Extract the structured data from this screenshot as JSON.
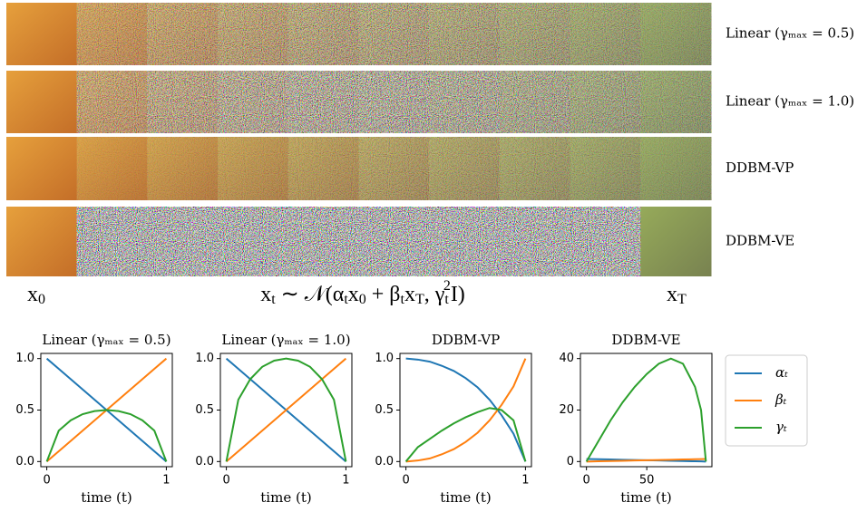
{
  "image_rows": [
    {
      "label": "Linear (γₘₐₓ = 0.5)"
    },
    {
      "label": "Linear (γₘₐₓ = 1.0)"
    },
    {
      "label": "DDBM-VP"
    },
    {
      "label": "DDBM-VE"
    }
  ],
  "captions": {
    "left": [
      {
        "text": "x"
      },
      {
        "sub": "0"
      }
    ],
    "center": [
      {
        "text": "x"
      },
      {
        "sub": "t"
      },
      {
        "text": " ∼ 𝒩(α"
      },
      {
        "sub": "t"
      },
      {
        "text": "x"
      },
      {
        "sub": "0"
      },
      {
        "text": " + β"
      },
      {
        "sub": "t"
      },
      {
        "text": "x"
      },
      {
        "sub": "T"
      },
      {
        "text": ", γ"
      },
      {
        "sub": "t"
      },
      {
        "sup": "2"
      },
      {
        "text": "I)"
      }
    ],
    "right": [
      {
        "text": "x"
      },
      {
        "sub": "T"
      }
    ]
  },
  "chart_data": [
    {
      "type": "line",
      "title": "Linear (γₘₐₓ = 0.5)",
      "xlabel": "time  (t)",
      "x": [
        0,
        0.1,
        0.2,
        0.3,
        0.4,
        0.5,
        0.6,
        0.7,
        0.8,
        0.9,
        1
      ],
      "series": [
        {
          "color": "#1f77b4",
          "values": [
            1,
            0.9,
            0.8,
            0.7,
            0.6,
            0.5,
            0.4,
            0.3,
            0.2,
            0.1,
            0
          ]
        },
        {
          "color": "#ff7f0e",
          "values": [
            0,
            0.1,
            0.2,
            0.3,
            0.4,
            0.5,
            0.6,
            0.7,
            0.8,
            0.9,
            1
          ]
        },
        {
          "color": "#2ca02c",
          "values": [
            0,
            0.3,
            0.4,
            0.46,
            0.49,
            0.5,
            0.49,
            0.46,
            0.4,
            0.3,
            0
          ]
        }
      ],
      "xlim": [
        -0.05,
        1.05
      ],
      "ylim": [
        -0.05,
        1.05
      ],
      "xticks": [
        0,
        1
      ],
      "yticks": [
        {
          "value": 0,
          "label": "0.0"
        },
        0.5,
        {
          "value": 1,
          "label": "1.0"
        }
      ]
    },
    {
      "type": "line",
      "title": "Linear (γₘₐₓ = 1.0)",
      "xlabel": "time  (t)",
      "x": [
        0,
        0.1,
        0.2,
        0.3,
        0.4,
        0.5,
        0.6,
        0.7,
        0.8,
        0.9,
        1
      ],
      "series": [
        {
          "color": "#1f77b4",
          "values": [
            1,
            0.9,
            0.8,
            0.7,
            0.6,
            0.5,
            0.4,
            0.3,
            0.2,
            0.1,
            0
          ]
        },
        {
          "color": "#ff7f0e",
          "values": [
            0,
            0.1,
            0.2,
            0.3,
            0.4,
            0.5,
            0.6,
            0.7,
            0.8,
            0.9,
            1
          ]
        },
        {
          "color": "#2ca02c",
          "values": [
            0,
            0.6,
            0.8,
            0.92,
            0.98,
            1.0,
            0.98,
            0.92,
            0.8,
            0.6,
            0
          ]
        }
      ],
      "xlim": [
        -0.05,
        1.05
      ],
      "ylim": [
        -0.05,
        1.05
      ],
      "xticks": [
        0,
        1
      ],
      "yticks": [
        {
          "value": 0,
          "label": "0.0"
        },
        0.5,
        {
          "value": 1,
          "label": "1.0"
        }
      ]
    },
    {
      "type": "line",
      "title": "DDBM-VP",
      "xlabel": "time  (t)",
      "x": [
        0,
        0.1,
        0.2,
        0.3,
        0.4,
        0.5,
        0.6,
        0.7,
        0.8,
        0.9,
        1
      ],
      "series": [
        {
          "color": "#1f77b4",
          "values": [
            1,
            0.99,
            0.97,
            0.93,
            0.88,
            0.81,
            0.72,
            0.6,
            0.45,
            0.27,
            0
          ]
        },
        {
          "color": "#ff7f0e",
          "values": [
            0,
            0.01,
            0.03,
            0.07,
            0.12,
            0.19,
            0.28,
            0.4,
            0.55,
            0.73,
            1
          ]
        },
        {
          "color": "#2ca02c",
          "values": [
            0,
            0.14,
            0.22,
            0.3,
            0.37,
            0.43,
            0.48,
            0.52,
            0.5,
            0.4,
            0
          ]
        }
      ],
      "xlim": [
        -0.05,
        1.05
      ],
      "ylim": [
        -0.05,
        1.05
      ],
      "xticks": [
        0,
        1
      ],
      "yticks": [
        {
          "value": 0,
          "label": "0.0"
        },
        0.5,
        {
          "value": 1,
          "label": "1.0"
        }
      ]
    },
    {
      "type": "line",
      "title": "DDBM-VE",
      "xlabel": "time  (t)",
      "x": [
        0,
        10,
        20,
        30,
        40,
        50,
        60,
        70,
        80,
        90,
        95,
        99
      ],
      "series": [
        {
          "name": "αₜ",
          "color": "#1f77b4",
          "values": [
            1,
            0.9,
            0.8,
            0.7,
            0.6,
            0.5,
            0.4,
            0.3,
            0.2,
            0.1,
            0.05,
            0
          ]
        },
        {
          "name": "βₜ",
          "color": "#ff7f0e",
          "values": [
            0,
            0.1,
            0.2,
            0.3,
            0.4,
            0.5,
            0.6,
            0.7,
            0.8,
            0.9,
            0.95,
            1
          ]
        },
        {
          "name": "γₜ",
          "color": "#2ca02c",
          "values": [
            0,
            8,
            16,
            23,
            29,
            34,
            38,
            40,
            38,
            29,
            20,
            0
          ]
        }
      ],
      "xlim": [
        -5,
        104
      ],
      "ylim": [
        -2,
        42
      ],
      "xticks": [
        0,
        50
      ],
      "yticks": [
        0,
        20,
        40
      ],
      "legend": "right"
    }
  ]
}
